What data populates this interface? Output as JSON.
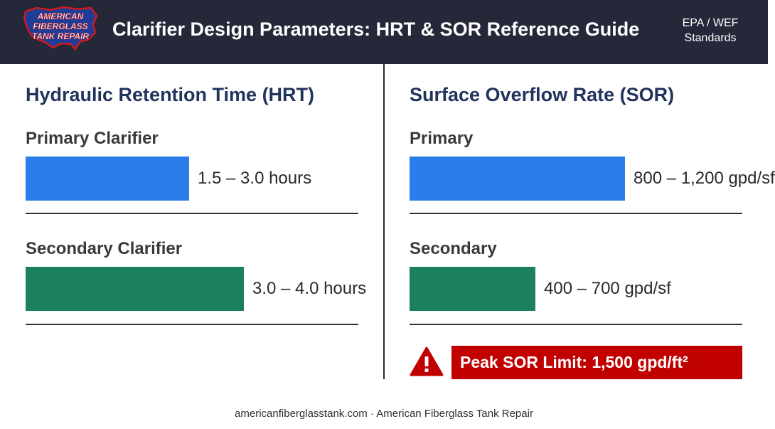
{
  "header": {
    "logo_lines": [
      "AMERICAN",
      "FIBERGLASS",
      "TANK REPAIR"
    ],
    "title": "Clarifier Design Parameters: HRT & SOR Reference Guide",
    "badge_line1": "EPA / WEF",
    "badge_line2": "Standards"
  },
  "colors": {
    "header_bg": "#242838",
    "primary_bar": "#2b7de9",
    "secondary_bar": "#1b8060",
    "alert_bg": "#c10000",
    "title_text": "#22335c"
  },
  "chart_data": [
    {
      "type": "bar",
      "orientation": "horizontal",
      "title": "Hydraulic Retention Time (HRT)",
      "categories": [
        "Primary Clarifier",
        "Secondary Clarifier"
      ],
      "values": [
        3.0,
        4.0
      ],
      "value_labels": [
        "1.5 – 3.0 hours",
        "3.0 – 4.0 hours"
      ],
      "unit": "hours",
      "xlim": [
        0,
        6.1
      ]
    },
    {
      "type": "bar",
      "orientation": "horizontal",
      "title": "Surface Overflow Rate (SOR)",
      "categories": [
        "Primary",
        "Secondary"
      ],
      "values": [
        1200,
        700
      ],
      "value_labels": [
        "800 – 1,200 gpd/sf",
        "400 – 700 gpd/sf"
      ],
      "unit": "gpd/sf",
      "xlim": [
        0,
        1855
      ],
      "annotation": "Peak SOR Limit: 1,500 gpd/ft²"
    }
  ],
  "footer": "americanfiberglasstank.com · American Fiberglass Tank Repair"
}
